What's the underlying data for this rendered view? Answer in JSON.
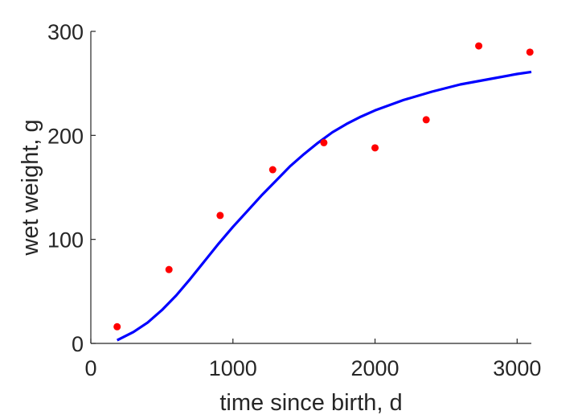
{
  "chart_data": {
    "type": "scatter",
    "xlabel": "time since birth, d",
    "ylabel": "wet weight, g",
    "xlim": [
      0,
      3100
    ],
    "ylim": [
      0,
      300
    ],
    "xticks": [
      0,
      1000,
      2000,
      3000
    ],
    "yticks": [
      0,
      100,
      200,
      300
    ],
    "grid": false,
    "colors": {
      "data": "#ff0000",
      "fit": "#0000ff",
      "axes": "#262626"
    },
    "series": [
      {
        "kind": "points",
        "x": [
          185,
          550,
          910,
          1280,
          1640,
          2000,
          2360,
          2730,
          3090
        ],
        "y": [
          16,
          71,
          123,
          167,
          193,
          188,
          215,
          286,
          280
        ]
      },
      {
        "kind": "line",
        "x": [
          185,
          300,
          400,
          500,
          600,
          700,
          800,
          900,
          1000,
          1100,
          1200,
          1300,
          1400,
          1500,
          1600,
          1700,
          1800,
          1900,
          2000,
          2200,
          2400,
          2600,
          2800,
          3000,
          3100
        ],
        "y": [
          3,
          11,
          20,
          32,
          46,
          62,
          79,
          96,
          112,
          127,
          142,
          156,
          170,
          182,
          193,
          203,
          211,
          218,
          224,
          234,
          242,
          249,
          254,
          259,
          261
        ]
      }
    ]
  }
}
